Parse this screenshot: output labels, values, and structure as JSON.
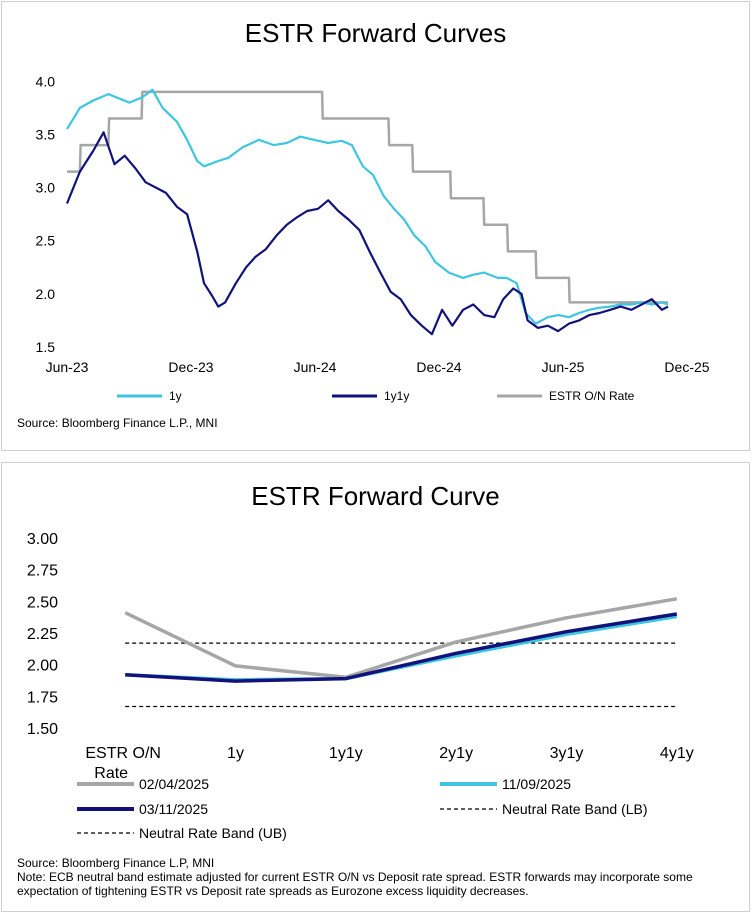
{
  "chart_data": [
    {
      "type": "line",
      "title": "ESTR Forward Curves",
      "xlabel": "",
      "ylabel": "",
      "x_ticks": [
        "Jun-23",
        "Dec-23",
        "Jun-24",
        "Dec-24",
        "Jun-25",
        "Dec-25"
      ],
      "xlim": [
        "2023-06-01",
        "2025-12-01"
      ],
      "y_ticks": [
        "1.5",
        "2.0",
        "2.5",
        "3.0",
        "3.5",
        "4.0"
      ],
      "ylim": [
        1.5,
        4.05
      ],
      "grid": false,
      "legend_position": "bottom",
      "series": [
        {
          "name": "1y",
          "color": "#3ec6e0",
          "points": [
            [
              "2023-06-01",
              3.55
            ],
            [
              "2023-06-20",
              3.75
            ],
            [
              "2023-07-10",
              3.82
            ],
            [
              "2023-08-01",
              3.88
            ],
            [
              "2023-09-01",
              3.8
            ],
            [
              "2023-09-20",
              3.85
            ],
            [
              "2023-10-05",
              3.92
            ],
            [
              "2023-10-20",
              3.75
            ],
            [
              "2023-11-10",
              3.62
            ],
            [
              "2023-11-25",
              3.45
            ],
            [
              "2023-12-10",
              3.25
            ],
            [
              "2023-12-20",
              3.2
            ],
            [
              "2024-01-10",
              3.25
            ],
            [
              "2024-01-25",
              3.28
            ],
            [
              "2024-02-15",
              3.38
            ],
            [
              "2024-03-10",
              3.45
            ],
            [
              "2024-04-01",
              3.4
            ],
            [
              "2024-04-20",
              3.42
            ],
            [
              "2024-05-10",
              3.48
            ],
            [
              "2024-05-30",
              3.45
            ],
            [
              "2024-06-20",
              3.42
            ],
            [
              "2024-07-10",
              3.44
            ],
            [
              "2024-07-25",
              3.4
            ],
            [
              "2024-08-10",
              3.2
            ],
            [
              "2024-08-25",
              3.12
            ],
            [
              "2024-09-10",
              2.92
            ],
            [
              "2024-09-25",
              2.8
            ],
            [
              "2024-10-10",
              2.7
            ],
            [
              "2024-10-25",
              2.55
            ],
            [
              "2024-11-10",
              2.45
            ],
            [
              "2024-11-25",
              2.3
            ],
            [
              "2024-12-15",
              2.2
            ],
            [
              "2025-01-05",
              2.15
            ],
            [
              "2025-01-20",
              2.18
            ],
            [
              "2025-02-05",
              2.2
            ],
            [
              "2025-02-25",
              2.15
            ],
            [
              "2025-03-10",
              2.15
            ],
            [
              "2025-03-25",
              2.1
            ],
            [
              "2025-04-07",
              1.82
            ],
            [
              "2025-04-22",
              1.72
            ],
            [
              "2025-05-10",
              1.78
            ],
            [
              "2025-05-25",
              1.8
            ],
            [
              "2025-06-10",
              1.78
            ],
            [
              "2025-06-25",
              1.82
            ],
            [
              "2025-07-10",
              1.85
            ],
            [
              "2025-07-25",
              1.87
            ],
            [
              "2025-08-10",
              1.88
            ],
            [
              "2025-08-25",
              1.9
            ],
            [
              "2025-09-10",
              1.9
            ],
            [
              "2025-09-25",
              1.92
            ],
            [
              "2025-10-10",
              1.9
            ],
            [
              "2025-10-25",
              1.92
            ],
            [
              "2025-11-03",
              1.9
            ]
          ]
        },
        {
          "name": "1y1y",
          "color": "#12127a",
          "points": [
            [
              "2023-06-01",
              2.85
            ],
            [
              "2023-06-20",
              3.15
            ],
            [
              "2023-07-10",
              3.35
            ],
            [
              "2023-07-25",
              3.52
            ],
            [
              "2023-08-10",
              3.22
            ],
            [
              "2023-08-25",
              3.3
            ],
            [
              "2023-09-10",
              3.18
            ],
            [
              "2023-09-25",
              3.05
            ],
            [
              "2023-10-10",
              3.0
            ],
            [
              "2023-10-25",
              2.95
            ],
            [
              "2023-11-10",
              2.82
            ],
            [
              "2023-11-25",
              2.75
            ],
            [
              "2023-12-10",
              2.4
            ],
            [
              "2023-12-20",
              2.1
            ],
            [
              "2024-01-01",
              1.98
            ],
            [
              "2024-01-10",
              1.88
            ],
            [
              "2024-01-20",
              1.92
            ],
            [
              "2024-02-05",
              2.1
            ],
            [
              "2024-02-20",
              2.25
            ],
            [
              "2024-03-05",
              2.35
            ],
            [
              "2024-03-20",
              2.42
            ],
            [
              "2024-04-05",
              2.55
            ],
            [
              "2024-04-20",
              2.65
            ],
            [
              "2024-05-05",
              2.72
            ],
            [
              "2024-05-20",
              2.78
            ],
            [
              "2024-06-05",
              2.8
            ],
            [
              "2024-06-20",
              2.88
            ],
            [
              "2024-07-05",
              2.78
            ],
            [
              "2024-07-20",
              2.7
            ],
            [
              "2024-08-05",
              2.6
            ],
            [
              "2024-08-20",
              2.4
            ],
            [
              "2024-09-05",
              2.2
            ],
            [
              "2024-09-20",
              2.02
            ],
            [
              "2024-10-05",
              1.95
            ],
            [
              "2024-10-20",
              1.8
            ],
            [
              "2024-11-05",
              1.7
            ],
            [
              "2024-11-20",
              1.62
            ],
            [
              "2024-12-05",
              1.85
            ],
            [
              "2024-12-20",
              1.7
            ],
            [
              "2025-01-05",
              1.85
            ],
            [
              "2025-01-20",
              1.9
            ],
            [
              "2025-02-05",
              1.8
            ],
            [
              "2025-02-20",
              1.78
            ],
            [
              "2025-03-05",
              1.95
            ],
            [
              "2025-03-20",
              2.05
            ],
            [
              "2025-04-01",
              2.0
            ],
            [
              "2025-04-10",
              1.75
            ],
            [
              "2025-04-25",
              1.68
            ],
            [
              "2025-05-10",
              1.7
            ],
            [
              "2025-05-25",
              1.65
            ],
            [
              "2025-06-10",
              1.72
            ],
            [
              "2025-06-25",
              1.75
            ],
            [
              "2025-07-10",
              1.8
            ],
            [
              "2025-07-25",
              1.82
            ],
            [
              "2025-08-10",
              1.85
            ],
            [
              "2025-08-25",
              1.88
            ],
            [
              "2025-09-10",
              1.85
            ],
            [
              "2025-09-25",
              1.9
            ],
            [
              "2025-10-10",
              1.95
            ],
            [
              "2025-10-25",
              1.85
            ],
            [
              "2025-11-03",
              1.88
            ]
          ]
        },
        {
          "name": "ESTR O/N Rate",
          "color": "#a6a6a6",
          "points": [
            [
              "2023-06-01",
              3.15
            ],
            [
              "2023-06-20",
              3.15
            ],
            [
              "2023-06-21",
              3.4
            ],
            [
              "2023-08-01",
              3.4
            ],
            [
              "2023-08-02",
              3.65
            ],
            [
              "2023-09-19",
              3.65
            ],
            [
              "2023-09-20",
              3.9
            ],
            [
              "2024-06-11",
              3.9
            ],
            [
              "2024-06-12",
              3.65
            ],
            [
              "2024-09-17",
              3.65
            ],
            [
              "2024-09-18",
              3.4
            ],
            [
              "2024-10-22",
              3.4
            ],
            [
              "2024-10-23",
              3.15
            ],
            [
              "2024-12-17",
              3.15
            ],
            [
              "2024-12-18",
              2.9
            ],
            [
              "2025-02-04",
              2.9
            ],
            [
              "2025-02-05",
              2.65
            ],
            [
              "2025-03-11",
              2.65
            ],
            [
              "2025-03-12",
              2.4
            ],
            [
              "2025-04-22",
              2.4
            ],
            [
              "2025-04-23",
              2.15
            ],
            [
              "2025-06-10",
              2.15
            ],
            [
              "2025-06-11",
              1.92
            ],
            [
              "2025-11-03",
              1.92
            ]
          ]
        }
      ],
      "source": "Source: Bloomberg Finance L.P., MNI"
    },
    {
      "type": "line",
      "title": "ESTR Forward Curve",
      "xlabel": "",
      "ylabel": "",
      "categories": [
        "ESTR O/N Rate",
        "1y",
        "1y1y",
        "2y1y",
        "3y1y",
        "4y1y"
      ],
      "y_ticks": [
        "1.50",
        "1.75",
        "2.00",
        "2.25",
        "2.50",
        "2.75",
        "3.00"
      ],
      "ylim": [
        1.5,
        3.0
      ],
      "grid": false,
      "legend_position": "bottom",
      "series": [
        {
          "name": "02/04/2025",
          "color": "#a6a6a6",
          "values": [
            2.41,
            1.99,
            1.9,
            2.18,
            2.37,
            2.52
          ]
        },
        {
          "name": "11/09/2025",
          "color": "#3ec6e0",
          "values": [
            1.92,
            1.88,
            1.89,
            2.07,
            2.24,
            2.38
          ]
        },
        {
          "name": "03/11/2025",
          "color": "#12127a",
          "values": [
            1.92,
            1.87,
            1.89,
            2.09,
            2.26,
            2.4
          ]
        },
        {
          "name": "Neutral Rate Band (LB)",
          "color": "#000000",
          "dashed": true,
          "values": [
            1.67,
            1.67,
            1.67,
            1.67,
            1.67,
            1.67
          ]
        },
        {
          "name": "Neutral Rate Band (UB)",
          "color": "#000000",
          "dashed": true,
          "values": [
            2.17,
            2.17,
            2.17,
            2.17,
            2.17,
            2.17
          ]
        }
      ],
      "source": "Source: Bloomberg Finance L.P, MNI",
      "note": "Note: ECB neutral band estimate adjusted for current ESTR O/N vs Deposit rate spread. ESTR forwards may incorporate some expectation of tightening ESTR vs Deposit rate spreads as Eurozone excess liquidity decreases."
    }
  ]
}
